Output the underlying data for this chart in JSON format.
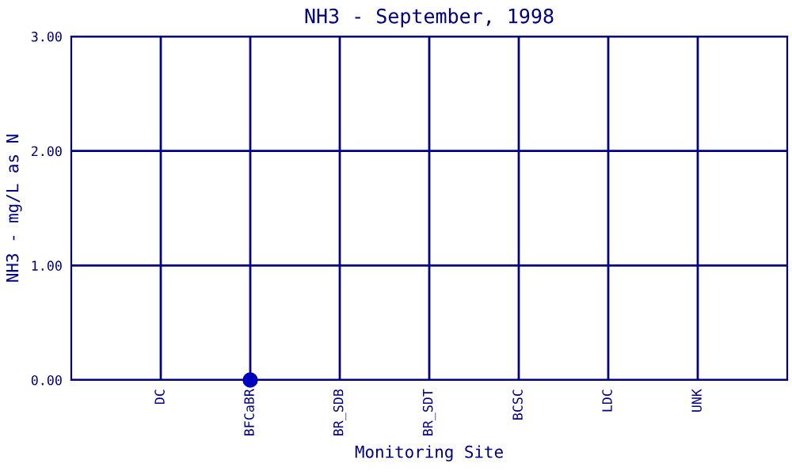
{
  "chart_data": {
    "type": "scatter",
    "title": "NH3 - September, 1998",
    "xlabel": "Monitoring Site",
    "ylabel": "NH3 - mg/L as N",
    "categories": [
      "DC",
      "BFCaBR",
      "BR_SDB",
      "BR_SDT",
      "BCSC",
      "LDC",
      "UNK"
    ],
    "series": [
      {
        "color": "#0000c0",
        "values": [
          null,
          0,
          null,
          null,
          null,
          null,
          null
        ]
      }
    ],
    "ylim": [
      0,
      3
    ],
    "yticks": [
      {
        "value": 0,
        "label": "0.00"
      },
      {
        "value": 1,
        "label": "1.00"
      },
      {
        "value": 2,
        "label": "2.00"
      },
      {
        "value": 3,
        "label": "3.00"
      }
    ],
    "grid": true,
    "marker": "circle"
  }
}
